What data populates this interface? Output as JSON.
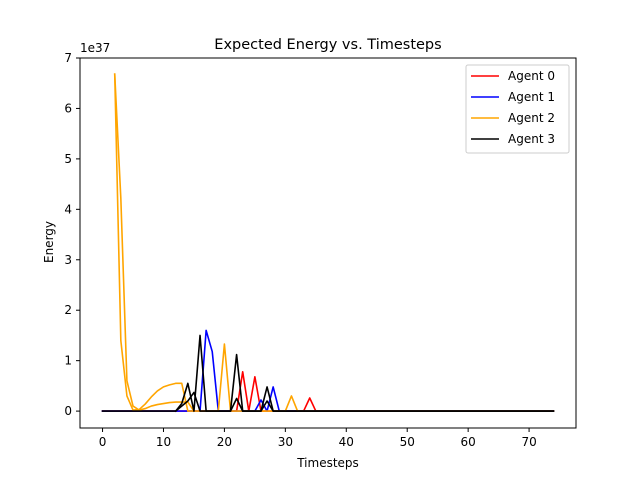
{
  "chart_data": {
    "type": "line",
    "title": "Expected Energy vs. Timesteps",
    "xlabel": "Timesteps",
    "ylabel": "Energy",
    "y_offset_label": "1e37",
    "xlim": [
      -3.7,
      77.7
    ],
    "ylim": [
      -0.335,
      7.0
    ],
    "x_ticks": [
      0,
      10,
      20,
      30,
      40,
      50,
      60,
      70
    ],
    "y_ticks": [
      0,
      1,
      2,
      3,
      4,
      5,
      6,
      7
    ],
    "grid": false,
    "legend_position": "upper-right",
    "series": [
      {
        "name": "Agent 0",
        "color": "#ff0000",
        "points": [
          [
            0,
            0
          ],
          [
            22,
            0
          ],
          [
            23,
            0.78
          ],
          [
            24,
            0
          ],
          [
            25,
            0.68
          ],
          [
            26,
            0
          ],
          [
            33,
            0
          ],
          [
            34,
            0.26
          ],
          [
            35,
            0
          ],
          [
            74,
            0
          ]
        ]
      },
      {
        "name": "Agent 1",
        "color": "#0000ff",
        "points": [
          [
            0,
            0
          ],
          [
            16,
            0
          ],
          [
            17,
            1.6
          ],
          [
            18,
            1.18
          ],
          [
            19,
            0
          ],
          [
            25,
            0
          ],
          [
            26,
            0.22
          ],
          [
            27,
            0
          ],
          [
            28,
            0.48
          ],
          [
            29,
            0
          ],
          [
            74,
            0
          ]
        ]
      },
      {
        "name": "Agent 2",
        "color": "#ffa500",
        "points": [
          [
            2,
            6.68
          ],
          [
            3,
            1.4
          ],
          [
            4,
            0.3
          ],
          [
            5,
            0.02
          ],
          [
            6,
            0.03
          ],
          [
            7,
            0.14
          ],
          [
            8,
            0.28
          ],
          [
            9,
            0.4
          ],
          [
            10,
            0.48
          ],
          [
            11,
            0.52
          ],
          [
            12,
            0.55
          ],
          [
            13,
            0.55
          ],
          [
            14,
            0
          ],
          [
            19,
            0
          ],
          [
            20,
            1.33
          ],
          [
            21,
            0
          ],
          [
            30,
            0
          ],
          [
            31,
            0.3
          ],
          [
            32,
            0
          ],
          [
            74,
            0
          ]
        ]
      },
      {
        "name": "Agent 2",
        "color": "#ffa500",
        "points": [
          [
            2,
            6.68
          ],
          [
            3,
            4.22
          ],
          [
            4,
            0.6
          ],
          [
            5,
            0.1
          ],
          [
            6,
            0.02
          ],
          [
            7,
            0.05
          ],
          [
            8,
            0.1
          ],
          [
            9,
            0.13
          ],
          [
            10,
            0.15
          ],
          [
            11,
            0.17
          ],
          [
            12,
            0.18
          ],
          [
            13,
            0.18
          ],
          [
            14,
            0.18
          ],
          [
            15,
            0
          ]
        ]
      },
      {
        "name": "Agent 3",
        "color": "#000000",
        "points": [
          [
            0,
            0
          ],
          [
            12,
            0
          ],
          [
            13,
            0.15
          ],
          [
            14,
            0.55
          ],
          [
            15,
            0
          ],
          [
            16,
            1.5
          ],
          [
            17,
            0
          ],
          [
            21,
            0
          ],
          [
            22,
            1.12
          ],
          [
            23,
            0
          ],
          [
            26,
            0
          ],
          [
            27,
            0.48
          ],
          [
            28,
            0
          ],
          [
            74,
            0
          ]
        ]
      },
      {
        "name": "Agent 3",
        "color": "#000000",
        "points": [
          [
            12,
            0
          ],
          [
            14,
            0.2
          ],
          [
            15,
            0.37
          ],
          [
            16,
            0
          ],
          [
            21,
            0
          ],
          [
            22,
            0.25
          ],
          [
            23,
            0
          ],
          [
            26,
            0
          ],
          [
            27,
            0.2
          ],
          [
            28,
            0
          ],
          [
            74,
            0
          ]
        ]
      }
    ],
    "legend": [
      {
        "name": "Agent 0",
        "color": "#ff0000"
      },
      {
        "name": "Agent 1",
        "color": "#0000ff"
      },
      {
        "name": "Agent 2",
        "color": "#ffa500"
      },
      {
        "name": "Agent 3",
        "color": "#000000"
      }
    ]
  }
}
